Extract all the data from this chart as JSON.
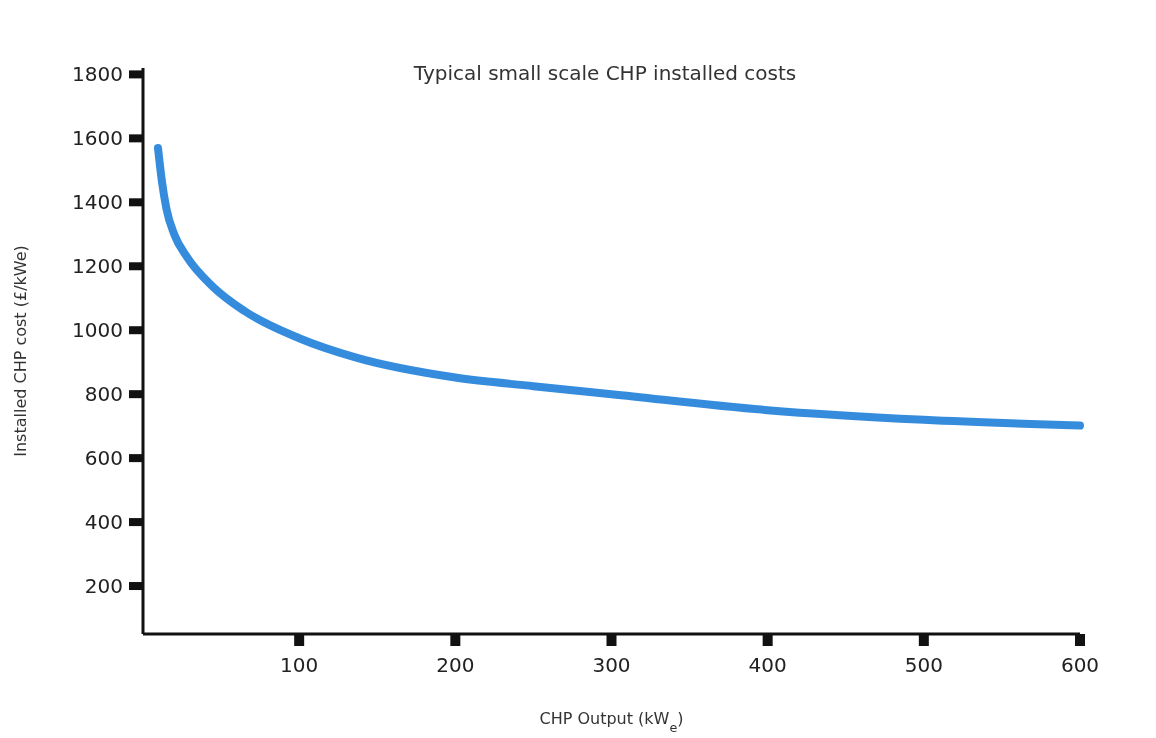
{
  "chart_data": {
    "type": "line",
    "title": "Typical small scale CHP installed costs",
    "xlabel": "CHP Output (kW$_{e}$)",
    "ylabel": "Installed CHP cost (£/kWe)",
    "x": [
      9.6,
      12,
      15,
      20,
      28,
      45,
      65,
      100,
      136,
      200,
      250,
      300,
      400,
      500,
      600
    ],
    "series": [
      {
        "color": "#1f7fd8",
        "values": [
          1570,
          1470,
          1380,
          1300,
          1230,
          1135,
          1060,
          975,
          915,
          852,
          825,
          800,
          750,
          720,
          702
        ]
      }
    ],
    "xlim": [
      0,
      600
    ],
    "xticks": [
      100,
      200,
      300,
      400,
      500,
      600
    ],
    "ylim": [
      50,
      1820
    ],
    "yticks": [
      200,
      400,
      600,
      800,
      1000,
      1200,
      1400,
      1600,
      1800
    ],
    "grid": false,
    "marker": "none",
    "line_style": "solid"
  }
}
